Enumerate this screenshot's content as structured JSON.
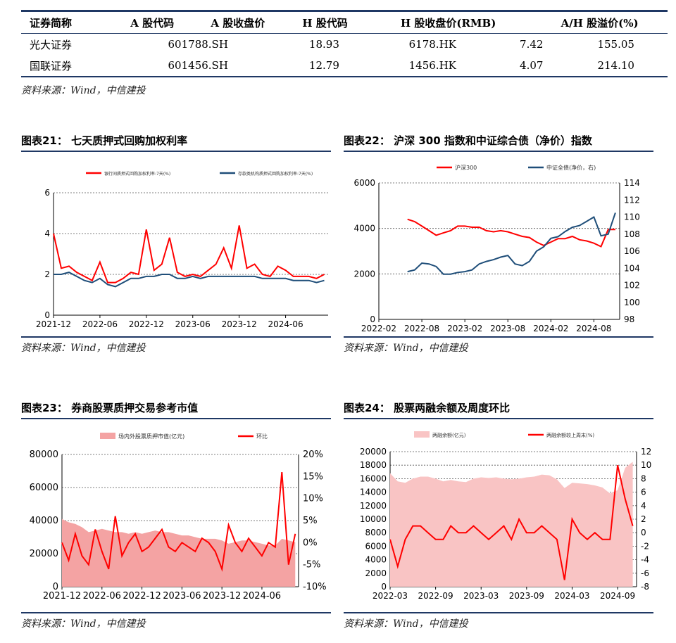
{
  "table": {
    "headers": [
      "证券简称",
      "A 股代码",
      "A 股收盘价",
      "H 股代码",
      "H 股收盘价(RMB)",
      "A/H 股溢价(%)"
    ],
    "rows": [
      [
        "光大证券",
        "601788.SH",
        "18.93",
        "6178.HK",
        "7.42",
        "155.05"
      ],
      [
        "国联证券",
        "601456.SH",
        "12.79",
        "1456.HK",
        "4.07",
        "214.10"
      ]
    ],
    "source": "资料来源：Wind，中信建投"
  },
  "figures": [
    {
      "title": "图表21：  七天质押式回购加权利率",
      "source": "资料来源：Wind，中信建投",
      "legend": [
        "银行间质押式回购加权利率:7天(%)",
        "存款类机构质押式回购加权利率:7天(%)"
      ]
    },
    {
      "title": "图表22：  沪深 300 指数和中证综合债（净价）指数",
      "source": "资料来源：Wind，中信建投",
      "legend": [
        "沪深300",
        "中证全债(净价，右)"
      ]
    },
    {
      "title": "图表23：  券商股票质押交易参考市值",
      "source": "资料来源：Wind，中信建投",
      "legend": [
        "场内外股票质押市值(亿元)",
        "环比"
      ]
    },
    {
      "title": "图表24：  股票两融余额及周度环比",
      "source": "资料来源：Wind，中信建投",
      "legend": [
        "两融余额(亿元)",
        "两融余额较上周末(%)"
      ]
    }
  ],
  "colors": {
    "red": "#ff0000",
    "navy": "#1f4e79",
    "pink_area": "#f4a3a3",
    "light_pink": "#f9c4c4",
    "rule": "#1f3864"
  },
  "chart_data": [
    {
      "type": "line",
      "x_ticks": [
        "2021-12",
        "2022-06",
        "2022-12",
        "2023-06",
        "2023-12",
        "2024-06"
      ],
      "ylim": [
        0,
        6
      ],
      "y_ticks": [
        0,
        2,
        4,
        6
      ],
      "series": [
        {
          "name": "银行间质押式回购加权利率:7天(%)",
          "color": "#ff0000",
          "x": [
            "2021-12",
            "2022-01",
            "2022-02",
            "2022-03",
            "2022-04",
            "2022-05",
            "2022-06",
            "2022-07",
            "2022-08",
            "2022-09",
            "2022-10",
            "2022-11",
            "2022-12",
            "2023-01",
            "2023-02",
            "2023-03",
            "2023-04",
            "2023-05",
            "2023-06",
            "2023-07",
            "2023-08",
            "2023-09",
            "2023-10",
            "2023-11",
            "2023-12",
            "2024-01",
            "2024-02",
            "2024-03",
            "2024-04",
            "2024-05",
            "2024-06",
            "2024-07",
            "2024-08",
            "2024-09",
            "2024-10",
            "2024-11"
          ],
          "values": [
            4.0,
            2.3,
            2.4,
            2.1,
            1.9,
            1.7,
            2.6,
            1.6,
            1.6,
            1.8,
            2.1,
            2.0,
            4.2,
            2.2,
            2.5,
            3.8,
            2.1,
            1.9,
            2.0,
            1.9,
            2.2,
            2.5,
            3.3,
            2.3,
            4.4,
            2.3,
            2.5,
            2.0,
            1.9,
            2.4,
            2.2,
            1.9,
            1.9,
            1.9,
            1.8,
            2.0
          ]
        },
        {
          "name": "存款类机构质押式回购加权利率:7天(%)",
          "color": "#1f4e79",
          "x": [
            "2021-12",
            "2022-01",
            "2022-02",
            "2022-03",
            "2022-04",
            "2022-05",
            "2022-06",
            "2022-07",
            "2022-08",
            "2022-09",
            "2022-10",
            "2022-11",
            "2022-12",
            "2023-01",
            "2023-02",
            "2023-03",
            "2023-04",
            "2023-05",
            "2023-06",
            "2023-07",
            "2023-08",
            "2023-09",
            "2023-10",
            "2023-11",
            "2023-12",
            "2024-01",
            "2024-02",
            "2024-03",
            "2024-04",
            "2024-05",
            "2024-06",
            "2024-07",
            "2024-08",
            "2024-09",
            "2024-10",
            "2024-11"
          ],
          "values": [
            2.0,
            2.0,
            2.1,
            1.9,
            1.7,
            1.6,
            1.8,
            1.5,
            1.4,
            1.6,
            1.8,
            1.8,
            1.9,
            1.9,
            2.0,
            2.0,
            1.8,
            1.8,
            1.9,
            1.8,
            1.9,
            1.9,
            1.9,
            1.9,
            1.9,
            1.9,
            1.9,
            1.8,
            1.8,
            1.8,
            1.8,
            1.7,
            1.7,
            1.7,
            1.6,
            1.7
          ]
        }
      ]
    },
    {
      "type": "line",
      "x_ticks": [
        "2022-02",
        "2022-08",
        "2023-02",
        "2023-08",
        "2024-02",
        "2024-08"
      ],
      "ylim": [
        0,
        6000
      ],
      "y_ticks": [
        0,
        2000,
        4000,
        6000
      ],
      "ylim_right": [
        98,
        114
      ],
      "y_ticks_right": [
        98,
        100,
        102,
        104,
        106,
        108,
        110,
        112,
        114
      ],
      "series": [
        {
          "name": "沪深300",
          "color": "#ff0000",
          "axis": "left",
          "x": [
            "2022-06",
            "2022-07",
            "2022-08",
            "2022-09",
            "2022-10",
            "2022-11",
            "2022-12",
            "2023-01",
            "2023-02",
            "2023-03",
            "2023-04",
            "2023-05",
            "2023-06",
            "2023-07",
            "2023-08",
            "2023-09",
            "2023-10",
            "2023-11",
            "2023-12",
            "2024-01",
            "2024-02",
            "2024-03",
            "2024-04",
            "2024-05",
            "2024-06",
            "2024-07",
            "2024-08",
            "2024-09",
            "2024-10",
            "2024-11"
          ],
          "values": [
            4400,
            4300,
            4100,
            3900,
            3700,
            3800,
            3900,
            4100,
            4100,
            4050,
            4050,
            3900,
            3850,
            3900,
            3850,
            3750,
            3650,
            3600,
            3400,
            3250,
            3400,
            3550,
            3550,
            3650,
            3500,
            3450,
            3350,
            3200,
            3950,
            3950
          ]
        },
        {
          "name": "中证全债(净价，右)",
          "color": "#1f4e79",
          "axis": "right",
          "x": [
            "2022-06",
            "2022-07",
            "2022-08",
            "2022-09",
            "2022-10",
            "2022-11",
            "2022-12",
            "2023-01",
            "2023-02",
            "2023-03",
            "2023-04",
            "2023-05",
            "2023-06",
            "2023-07",
            "2023-08",
            "2023-09",
            "2023-10",
            "2023-11",
            "2023-12",
            "2024-01",
            "2024-02",
            "2024-03",
            "2024-04",
            "2024-05",
            "2024-06",
            "2024-07",
            "2024-08",
            "2024-09",
            "2024-10",
            "2024-11"
          ],
          "values": [
            103.6,
            103.8,
            104.6,
            104.5,
            104.2,
            103.3,
            103.3,
            103.5,
            103.6,
            103.8,
            104.5,
            104.8,
            105.0,
            105.3,
            105.5,
            104.5,
            104.3,
            104.8,
            106.0,
            106.5,
            107.5,
            107.7,
            108.3,
            108.8,
            109.0,
            109.5,
            110.0,
            107.8,
            108.0,
            110.5
          ]
        }
      ]
    },
    {
      "type": "area",
      "x_ticks": [
        "2021-12",
        "2022-06",
        "2022-12",
        "2023-06",
        "2023-12",
        "2024-06"
      ],
      "ylim": [
        0,
        80000
      ],
      "y_ticks": [
        0,
        20000,
        40000,
        60000,
        80000
      ],
      "ylim_right": [
        -10,
        20
      ],
      "y_ticks_right": [
        "-10%",
        "-5%",
        "0%",
        "5%",
        "10%",
        "15%",
        "20%"
      ],
      "series": [
        {
          "name": "场内外股票质押市值(亿元)",
          "color": "#f4a3a3",
          "axis": "left",
          "x": [
            "2021-12",
            "2022-01",
            "2022-02",
            "2022-03",
            "2022-04",
            "2022-05",
            "2022-06",
            "2022-07",
            "2022-08",
            "2022-09",
            "2022-10",
            "2022-11",
            "2022-12",
            "2023-01",
            "2023-02",
            "2023-03",
            "2023-04",
            "2023-05",
            "2023-06",
            "2023-07",
            "2023-08",
            "2023-09",
            "2023-10",
            "2023-11",
            "2023-12",
            "2024-01",
            "2024-02",
            "2024-03",
            "2024-04",
            "2024-05",
            "2024-06",
            "2024-07",
            "2024-08",
            "2024-09",
            "2024-10",
            "2024-11"
          ],
          "values": [
            41000,
            39000,
            38000,
            36000,
            33000,
            34000,
            35000,
            34000,
            33000,
            33000,
            32000,
            33000,
            32000,
            33000,
            34000,
            33000,
            33000,
            32000,
            31000,
            31000,
            30000,
            29000,
            29000,
            29000,
            28000,
            26000,
            27000,
            28000,
            28000,
            27000,
            26000,
            25000,
            25000,
            29000,
            28000,
            27000
          ]
        },
        {
          "name": "环比",
          "color": "#ff0000",
          "axis": "right",
          "x": [
            "2021-12",
            "2022-01",
            "2022-02",
            "2022-03",
            "2022-04",
            "2022-05",
            "2022-06",
            "2022-07",
            "2022-08",
            "2022-09",
            "2022-10",
            "2022-11",
            "2022-12",
            "2023-01",
            "2023-02",
            "2023-03",
            "2023-04",
            "2023-05",
            "2023-06",
            "2023-07",
            "2023-08",
            "2023-09",
            "2023-10",
            "2023-11",
            "2023-12",
            "2024-01",
            "2024-02",
            "2024-03",
            "2024-04",
            "2024-05",
            "2024-06",
            "2024-07",
            "2024-08",
            "2024-09",
            "2024-10",
            "2024-11"
          ],
          "values": [
            0,
            -4,
            2,
            -3,
            -5,
            3,
            -2,
            -6,
            6,
            -3,
            0,
            2,
            -2,
            -1,
            1,
            3,
            -1,
            -2,
            0,
            -1,
            -2,
            1,
            0,
            -2,
            -6,
            4,
            0,
            -2,
            1,
            -1,
            -3,
            0,
            -1,
            16,
            -5,
            2
          ]
        }
      ]
    },
    {
      "type": "area",
      "x_ticks": [
        "2022-03",
        "2022-09",
        "2023-03",
        "2023-09",
        "2024-03",
        "2024-09"
      ],
      "ylim": [
        0,
        20000
      ],
      "y_ticks": [
        0,
        2000,
        4000,
        6000,
        8000,
        10000,
        12000,
        14000,
        16000,
        18000,
        20000
      ],
      "ylim_right": [
        -8,
        12
      ],
      "y_ticks_right": [
        -8,
        -6,
        -4,
        -2,
        0,
        2,
        4,
        6,
        8,
        10,
        12
      ],
      "series": [
        {
          "name": "两融余额(亿元)",
          "color": "#f9c4c4",
          "axis": "left",
          "x": [
            "2022-03",
            "2022-04",
            "2022-05",
            "2022-06",
            "2022-07",
            "2022-08",
            "2022-09",
            "2022-10",
            "2022-11",
            "2022-12",
            "2023-01",
            "2023-02",
            "2023-03",
            "2023-04",
            "2023-05",
            "2023-06",
            "2023-07",
            "2023-08",
            "2023-09",
            "2023-10",
            "2023-11",
            "2023-12",
            "2024-01",
            "2024-02",
            "2024-03",
            "2024-04",
            "2024-05",
            "2024-06",
            "2024-07",
            "2024-08",
            "2024-09",
            "2024-10",
            "2024-11"
          ],
          "values": [
            16800,
            15600,
            15400,
            16000,
            16300,
            16300,
            16000,
            15600,
            15800,
            15600,
            15500,
            16000,
            16200,
            16100,
            16200,
            16000,
            15900,
            16000,
            16200,
            16300,
            16600,
            16500,
            15900,
            14600,
            15400,
            15300,
            15200,
            15000,
            14700,
            13800,
            14300,
            17600,
            18500
          ]
        },
        {
          "name": "两融余额较上周末(%)",
          "color": "#ff0000",
          "axis": "right",
          "x": [
            "2022-03",
            "2022-04",
            "2022-05",
            "2022-06",
            "2022-07",
            "2022-08",
            "2022-09",
            "2022-10",
            "2022-11",
            "2022-12",
            "2023-01",
            "2023-02",
            "2023-03",
            "2023-04",
            "2023-05",
            "2023-06",
            "2023-07",
            "2023-08",
            "2023-09",
            "2023-10",
            "2023-11",
            "2023-12",
            "2024-01",
            "2024-02",
            "2024-03",
            "2024-04",
            "2024-05",
            "2024-06",
            "2024-07",
            "2024-08",
            "2024-09",
            "2024-10",
            "2024-11"
          ],
          "values": [
            -1,
            -5,
            -1,
            1,
            1,
            0,
            -1,
            -1,
            1,
            0,
            0,
            1,
            0,
            -1,
            0,
            1,
            -1,
            2,
            0,
            0,
            1,
            0,
            -1,
            -7,
            2,
            0,
            -1,
            0,
            -1,
            -1,
            10,
            5,
            1
          ]
        }
      ]
    }
  ]
}
